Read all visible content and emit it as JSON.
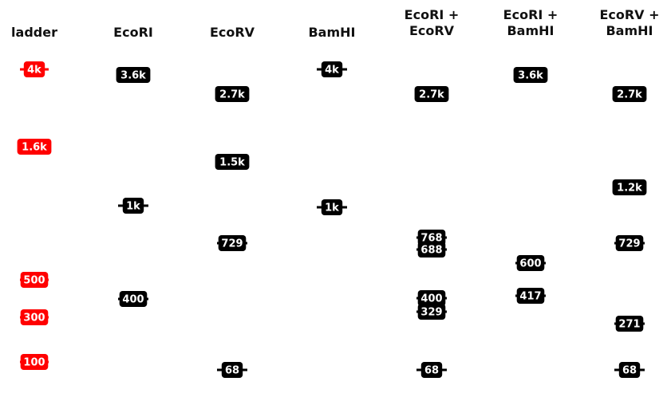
{
  "colors": {
    "ladder": "#ff0000",
    "band": "#000000",
    "label_text": "#ffffff",
    "title": "#111111"
  },
  "lanes": [
    {
      "title": [
        "ladder"
      ],
      "kind": "ladder",
      "bands": [
        {
          "label": "4k",
          "bp": 4000
        },
        {
          "label": "1.6k",
          "bp": 1600
        },
        {
          "label": "500",
          "bp": 500
        },
        {
          "label": "300",
          "bp": 300
        },
        {
          "label": "100",
          "bp": 100
        }
      ]
    },
    {
      "title": [
        "EcoRI"
      ],
      "kind": "digest",
      "bands": [
        {
          "label": "3.6k",
          "bp": 3600
        },
        {
          "label": "1k",
          "bp": 1000
        },
        {
          "label": "400",
          "bp": 400
        }
      ]
    },
    {
      "title": [
        "EcoRV"
      ],
      "kind": "digest",
      "bands": [
        {
          "label": "2.7k",
          "bp": 2700
        },
        {
          "label": "1.5k",
          "bp": 1500
        },
        {
          "label": "729",
          "bp": 729
        },
        {
          "label": "68",
          "bp": 68
        }
      ]
    },
    {
      "title": [
        "BamHI"
      ],
      "kind": "digest",
      "bands": [
        {
          "label": "4k",
          "bp": 4000
        },
        {
          "label": "1k",
          "bp": 1000
        }
      ]
    },
    {
      "title": [
        "EcoRI +",
        "EcoRV"
      ],
      "kind": "digest",
      "bands": [
        {
          "label": "2.7k",
          "bp": 2700
        },
        {
          "label": "768",
          "bp": 768
        },
        {
          "label": "688",
          "bp": 688
        },
        {
          "label": "400",
          "bp": 400
        },
        {
          "label": "329",
          "bp": 329
        },
        {
          "label": "68",
          "bp": 68
        }
      ]
    },
    {
      "title": [
        "EcoRI +",
        "BamHI"
      ],
      "kind": "digest",
      "bands": [
        {
          "label": "3.6k",
          "bp": 3600
        },
        {
          "label": "600",
          "bp": 600
        },
        {
          "label": "417",
          "bp": 417
        }
      ]
    },
    {
      "title": [
        "EcoRV +",
        "BamHI"
      ],
      "kind": "digest",
      "bands": [
        {
          "label": "2.7k",
          "bp": 2700
        },
        {
          "label": "1.2k",
          "bp": 1200
        },
        {
          "label": "729",
          "bp": 729
        },
        {
          "label": "271",
          "bp": 271
        },
        {
          "label": "68",
          "bp": 68
        }
      ]
    }
  ]
}
